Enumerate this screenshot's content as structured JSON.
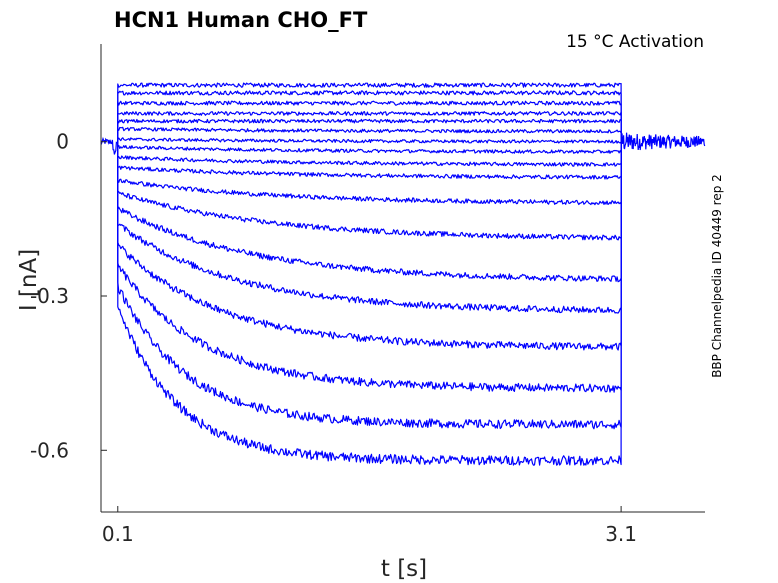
{
  "chart_data": {
    "type": "line",
    "title": "HCN1  Human  CHO_FT",
    "annotation": "15 °C  Activation",
    "side_label": "BBP Channelpedia ID 40449 rep 2",
    "xlabel": "t [s]",
    "ylabel": "I [nA]",
    "xlim": [
      0.0,
      3.6
    ],
    "ylim": [
      -0.72,
      0.19
    ],
    "x_ticks": [
      0.1,
      3.1
    ],
    "x_tick_labels": [
      "0.1",
      "3.1"
    ],
    "y_ticks": [
      0,
      -0.3,
      -0.6
    ],
    "y_tick_labels": [
      "0",
      "-0.3",
      "-0.6"
    ],
    "grid": false,
    "color": "#0000ff",
    "step_start": 0.1,
    "step_end": 3.1,
    "series": [
      {
        "steady_state": 0.11,
        "onset": 0.11,
        "tau": 1.0
      },
      {
        "steady_state": 0.095,
        "onset": 0.095,
        "tau": 1.0
      },
      {
        "steady_state": 0.075,
        "onset": 0.075,
        "tau": 1.0
      },
      {
        "steady_state": 0.055,
        "onset": 0.055,
        "tau": 1.0
      },
      {
        "steady_state": 0.04,
        "onset": 0.04,
        "tau": 1.0
      },
      {
        "steady_state": 0.02,
        "onset": 0.025,
        "tau": 1.0
      },
      {
        "steady_state": 0.0,
        "onset": 0.005,
        "tau": 1.0
      },
      {
        "steady_state": -0.02,
        "onset": -0.01,
        "tau": 1.0
      },
      {
        "steady_state": -0.045,
        "onset": -0.03,
        "tau": 1.0
      },
      {
        "steady_state": -0.07,
        "onset": -0.05,
        "tau": 1.0
      },
      {
        "steady_state": -0.12,
        "onset": -0.075,
        "tau": 0.9
      },
      {
        "steady_state": -0.19,
        "onset": -0.1,
        "tau": 0.9
      },
      {
        "steady_state": -0.27,
        "onset": -0.13,
        "tau": 0.8
      },
      {
        "steady_state": -0.33,
        "onset": -0.16,
        "tau": 0.7
      },
      {
        "steady_state": -0.4,
        "onset": -0.2,
        "tau": 0.6
      },
      {
        "steady_state": -0.48,
        "onset": -0.24,
        "tau": 0.5
      },
      {
        "steady_state": -0.55,
        "onset": -0.28,
        "tau": 0.4
      },
      {
        "steady_state": -0.62,
        "onset": -0.32,
        "tau": 0.35
      }
    ],
    "pre_step_level": 0.0,
    "post_step_level": 0.0
  }
}
